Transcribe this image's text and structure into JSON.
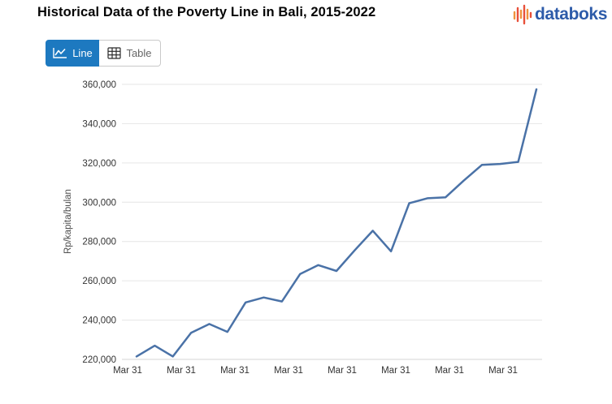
{
  "header": {
    "title": "Historical Data of the Poverty Line in Bali, 2015-2022",
    "logo_text": "databoks",
    "logo_text_color": "#2d5ba9",
    "logo_bar_colors": [
      "#f0923d",
      "#e8503a"
    ]
  },
  "toolbar": {
    "line_button_label": "Line",
    "table_button_label": "Table",
    "active_view": "Line",
    "active_button_color": "#1d79c0"
  },
  "chart_data": {
    "type": "line",
    "title": "Historical Data of the Poverty Line in Bali, 2015-2022",
    "xlabel": "",
    "ylabel": "Rp/kapita/bulan",
    "line_color": "#4a72a7",
    "grid": true,
    "legend": "none",
    "ylim": [
      220000,
      360000
    ],
    "ytick_step": 20000,
    "ytick_labels": [
      "220,000",
      "240,000",
      "260,000",
      "280,000",
      "300,000",
      "320,000",
      "340,000",
      "360,000"
    ],
    "xtick_labels": [
      "Mar 31",
      "Mar 31",
      "Mar 31",
      "Mar 31",
      "Mar 31",
      "Mar 31",
      "Mar 31",
      "Mar 31"
    ],
    "xtick_label_every_n_points": 3,
    "values": [
      221500,
      227000,
      221500,
      233500,
      238000,
      234000,
      249000,
      251500,
      249500,
      263500,
      268000,
      265000,
      275500,
      285500,
      275000,
      299500,
      302000,
      302500,
      311000,
      319000,
      319500,
      320500,
      357500
    ]
  }
}
